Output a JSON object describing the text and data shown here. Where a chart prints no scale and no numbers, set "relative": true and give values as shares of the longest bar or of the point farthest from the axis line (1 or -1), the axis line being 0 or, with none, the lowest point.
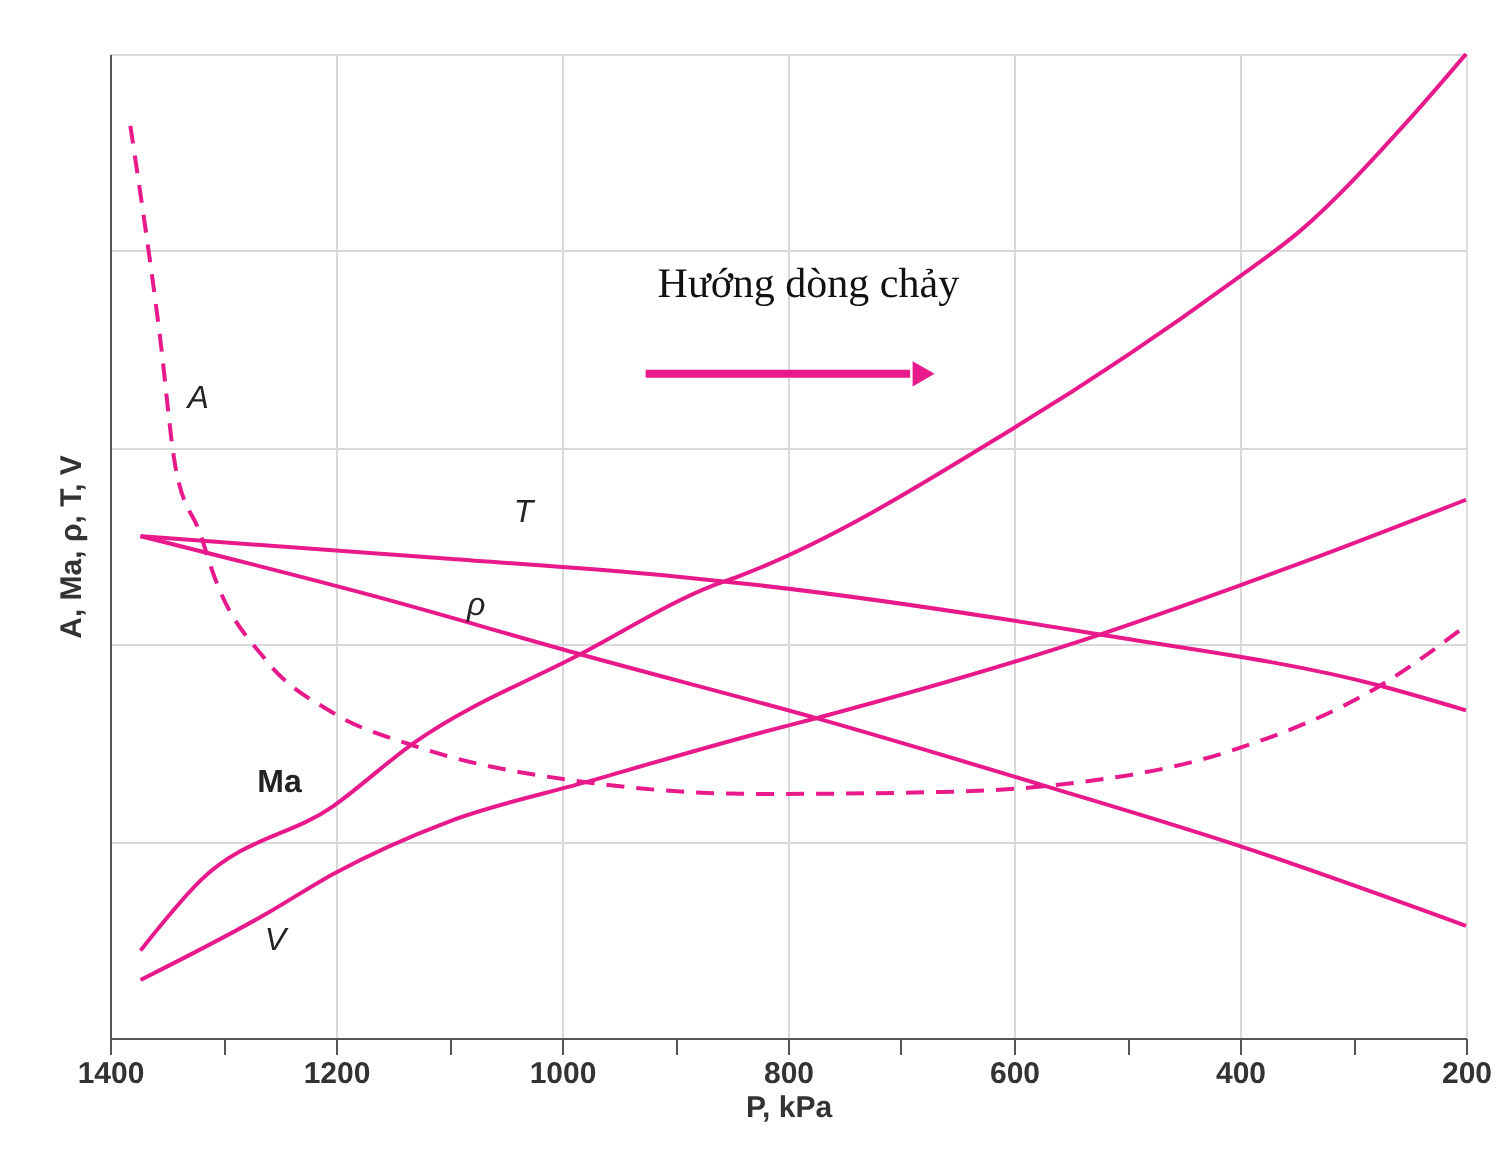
{
  "chart_data": {
    "type": "line",
    "relative": true,
    "xlabel": "P, kPa",
    "ylabel": "A, Ma, ρ, T, V",
    "xlim": [
      1400,
      200
    ],
    "xticks": [
      1400,
      {
        "value": 1300,
        "label": null
      },
      1200,
      {
        "value": 1100,
        "label": null
      },
      1000,
      {
        "value": 900,
        "label": null
      },
      800,
      {
        "value": 700,
        "label": null
      },
      600,
      {
        "value": 500,
        "label": null
      },
      400,
      {
        "value": 300,
        "label": null
      },
      200
    ],
    "grid": true,
    "marker": "none",
    "tick_labels": "x",
    "annotations": [
      "Hướng dòng chảy"
    ],
    "series": [
      {
        "name": "A",
        "color": "#e8198b",
        "line_style": "dashed",
        "x": [
          1382,
          1356,
          1342,
          1320,
          1308,
          1262,
          1202,
          1131,
          979,
          825,
          665,
          572,
          405,
          276,
          200
        ],
        "values": [
          0.927,
          0.715,
          0.58,
          0.512,
          0.47,
          0.384,
          0.33,
          0.297,
          0.26,
          0.248,
          0.25,
          0.256,
          0.293,
          0.358,
          0.419
        ]
      },
      {
        "name": "Ma",
        "color": "#e8198b",
        "line_style": "solid",
        "x": [
          1373,
          1320,
          1202,
          1131,
          984,
          866,
          842,
          600,
          405,
          347,
          253,
          200
        ],
        "values": [
          0.089,
          0.16,
          0.236,
          0.3,
          0.39,
          0.46,
          0.47,
          0.62,
          0.77,
          0.82,
          0.93,
          1.0
        ]
      },
      {
        "name": "ρ",
        "color": "#e8198b",
        "line_style": "solid",
        "x": [
          1373,
          1166,
          984,
          775,
          572,
          400,
          200
        ],
        "values": [
          0.51,
          0.449,
          0.39,
          0.325,
          0.256,
          0.195,
          0.114
        ]
      },
      {
        "name": "T",
        "color": "#e8198b",
        "line_style": "solid",
        "x": [
          1373,
          1100,
          908,
          825,
          524,
          276,
          200
        ],
        "values": [
          0.51,
          0.487,
          0.47,
          0.46,
          0.41,
          0.358,
          0.333
        ]
      },
      {
        "name": "V",
        "color": "#e8198b",
        "line_style": "solid",
        "x": [
          1373,
          1262,
          1202,
          1100,
          979,
          825,
          775,
          524,
          400,
          329,
          200
        ],
        "values": [
          0.059,
          0.126,
          0.167,
          0.22,
          0.26,
          0.31,
          0.325,
          0.41,
          0.46,
          0.49,
          0.547
        ]
      }
    ]
  }
}
